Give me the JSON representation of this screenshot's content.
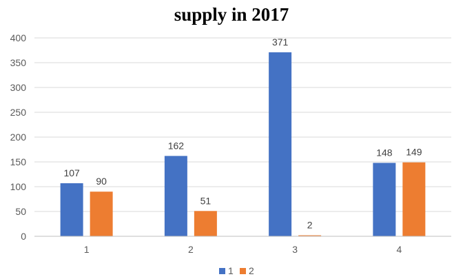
{
  "chart_data": {
    "type": "bar",
    "title": "supply in 2017",
    "xlabel": "",
    "ylabel": "",
    "categories": [
      "1",
      "2",
      "3",
      "4"
    ],
    "series": [
      {
        "name": "1",
        "color": "#4472c4",
        "values": [
          107,
          162,
          371,
          148
        ]
      },
      {
        "name": "2",
        "color": "#ed7d31",
        "values": [
          90,
          51,
          2,
          149
        ]
      }
    ],
    "ylim": [
      0,
      400
    ],
    "yticks": [
      0,
      50,
      100,
      150,
      200,
      250,
      300,
      350,
      400
    ],
    "grid": true,
    "legend_position": "bottom"
  }
}
